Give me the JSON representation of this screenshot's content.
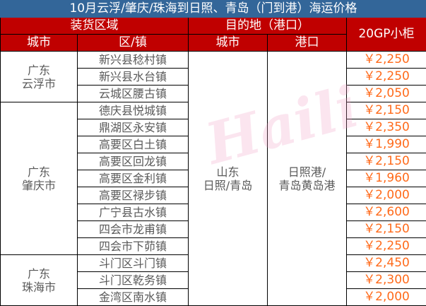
{
  "title": "10月云浮/肇庆/珠海到日照、青岛（门到港）海运价格",
  "headers": {
    "loading_area": "装货区域",
    "destination": "目的地（港口）",
    "price_col": "20GP小柜",
    "city": "城市",
    "district": "区/镇",
    "dest_city": "城市",
    "port": "港口"
  },
  "destination": {
    "city": "山东\n日照/青岛",
    "port": "日照港/\n青岛黄岛港"
  },
  "groups": [
    {
      "city": "广东\n云浮市",
      "rows": [
        {
          "town": "新兴县稔村镇",
          "price": "￥2,250"
        },
        {
          "town": "新兴县水台镇",
          "price": "￥2,250"
        },
        {
          "town": "云城区腰古镇",
          "price": "￥2,050"
        }
      ]
    },
    {
      "city": "广东\n肇庆市",
      "rows": [
        {
          "town": "德庆县悦城镇",
          "price": "￥2,150"
        },
        {
          "town": "鼎湖区永安镇",
          "price": "￥2,350"
        },
        {
          "town": "高要区白土镇",
          "price": "￥1,990"
        },
        {
          "town": "高要区回龙镇",
          "price": "￥2,150"
        },
        {
          "town": "高要区金利镇",
          "price": "￥1,960"
        },
        {
          "town": "高要区禄步镇",
          "price": "￥2,000"
        },
        {
          "town": "广宁县古水镇",
          "price": "￥2,600"
        },
        {
          "town": "四会市龙甫镇",
          "price": "￥2,150"
        },
        {
          "town": "四会市下茆镇",
          "price": "￥2,250"
        }
      ]
    },
    {
      "city": "广东\n珠海市",
      "rows": [
        {
          "town": "斗门区斗门镇",
          "price": "￥2,450"
        },
        {
          "town": "斗门区乾务镇",
          "price": "￥2,300"
        },
        {
          "town": "金湾区南水镇",
          "price": "￥2,000"
        }
      ]
    }
  ],
  "watermark": "Haili",
  "colors": {
    "title_bg": "#336699",
    "header_bg": "#c00000",
    "price": "#ff6a1a",
    "text": "#595959"
  }
}
